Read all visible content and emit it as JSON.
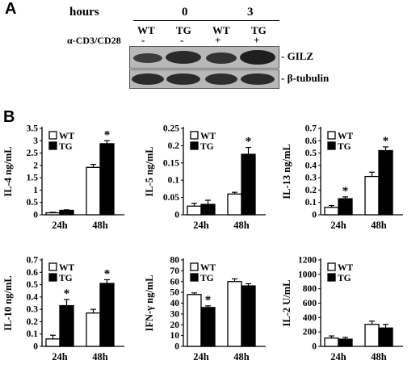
{
  "panel_a": {
    "letter": "A",
    "hours_label": "hours",
    "time_points": [
      "0",
      "3"
    ],
    "genotypes": [
      "WT",
      "TG",
      "WT",
      "TG"
    ],
    "treatment_label": "α-CD3/CD28",
    "treatment_signs": [
      "-",
      "-",
      "+",
      "+"
    ],
    "blot_labels": [
      "GILZ",
      "β-tubulin"
    ]
  },
  "panel_b": {
    "letter": "B"
  },
  "colors": {
    "wt_fill": "#ffffff",
    "tg_fill": "#000000",
    "bar_stroke": "#000000",
    "blot_band": "#3c3c3c"
  },
  "chart_data": [
    {
      "type": "bar",
      "ylabel": "IL-4 ng/mL",
      "categories": [
        "24h",
        "48h"
      ],
      "ylim": [
        0,
        3.5
      ],
      "yticks": [
        "0",
        "0.5",
        "1",
        "1.5",
        "2",
        "2.5",
        "3",
        "3.5"
      ],
      "legend": [
        "WT",
        "TG"
      ],
      "series": [
        {
          "name": "WT",
          "values": [
            0.08,
            1.92
          ],
          "errors": [
            0.02,
            0.12
          ]
        },
        {
          "name": "TG",
          "values": [
            0.18,
            2.88
          ],
          "errors": [
            0.02,
            0.12
          ]
        }
      ],
      "significance": [
        null,
        [
          null,
          "*"
        ]
      ]
    },
    {
      "type": "bar",
      "ylabel": "IL-5 ng/mL",
      "categories": [
        "24h",
        "48h"
      ],
      "ylim": [
        0,
        0.25
      ],
      "yticks": [
        "0",
        "0.05",
        "0.1",
        "0.15",
        "0.2",
        "0.25"
      ],
      "legend": [
        "WT",
        "TG"
      ],
      "series": [
        {
          "name": "WT",
          "values": [
            0.025,
            0.06
          ],
          "errors": [
            0.008,
            0.005
          ]
        },
        {
          "name": "TG",
          "values": [
            0.03,
            0.175
          ],
          "errors": [
            0.012,
            0.02
          ]
        }
      ],
      "significance": [
        null,
        [
          null,
          "*"
        ]
      ]
    },
    {
      "type": "bar",
      "ylabel": "IL-13 ng/mL",
      "categories": [
        "24h",
        "48h"
      ],
      "ylim": [
        0,
        0.7
      ],
      "yticks": [
        "0",
        "0.1",
        "0.2",
        "0.3",
        "0.4",
        "0.5",
        "0.6",
        "0.7"
      ],
      "legend": [
        "WT",
        "TG"
      ],
      "series": [
        {
          "name": "WT",
          "values": [
            0.06,
            0.31
          ],
          "errors": [
            0.015,
            0.035
          ]
        },
        {
          "name": "TG",
          "values": [
            0.13,
            0.52
          ],
          "errors": [
            0.015,
            0.03
          ]
        }
      ],
      "significance": [
        [
          null,
          "*"
        ],
        [
          null,
          "*"
        ]
      ]
    },
    {
      "type": "bar",
      "ylabel": "IL-10 ng/mL",
      "categories": [
        "24h",
        "48h"
      ],
      "ylim": [
        0,
        0.7
      ],
      "yticks": [
        "0",
        "0.1",
        "0.2",
        "0.3",
        "0.4",
        "0.5",
        "0.6",
        "0.7"
      ],
      "legend": [
        "WT",
        "TG"
      ],
      "series": [
        {
          "name": "WT",
          "values": [
            0.06,
            0.27
          ],
          "errors": [
            0.03,
            0.03
          ]
        },
        {
          "name": "TG",
          "values": [
            0.33,
            0.51
          ],
          "errors": [
            0.05,
            0.03
          ]
        }
      ],
      "significance": [
        [
          null,
          "*"
        ],
        [
          null,
          "*"
        ]
      ]
    },
    {
      "type": "bar",
      "ylabel": "IFN-γ ng/mL",
      "categories": [
        "24h",
        "48h"
      ],
      "ylim": [
        0,
        80
      ],
      "yticks": [
        "0",
        "10",
        "20",
        "30",
        "40",
        "50",
        "60",
        "70",
        "80"
      ],
      "legend": [
        "WT",
        "TG"
      ],
      "series": [
        {
          "name": "WT",
          "values": [
            48,
            60
          ],
          "errors": [
            1.5,
            2.5
          ]
        },
        {
          "name": "TG",
          "values": [
            36,
            56
          ],
          "errors": [
            1.5,
            2
          ]
        }
      ],
      "significance": [
        [
          null,
          "*"
        ],
        null
      ]
    },
    {
      "type": "bar",
      "ylabel": "IL-2 U/mL",
      "categories": [
        "24h",
        "48h"
      ],
      "ylim": [
        0,
        1200
      ],
      "yticks": [
        "0",
        "200",
        "400",
        "600",
        "800",
        "1000",
        "1200"
      ],
      "legend": [
        "WT",
        "TG"
      ],
      "series": [
        {
          "name": "WT",
          "values": [
            115,
            305
          ],
          "errors": [
            30,
            45
          ]
        },
        {
          "name": "TG",
          "values": [
            100,
            255
          ],
          "errors": [
            25,
            50
          ]
        }
      ],
      "significance": [
        null,
        null
      ]
    }
  ]
}
